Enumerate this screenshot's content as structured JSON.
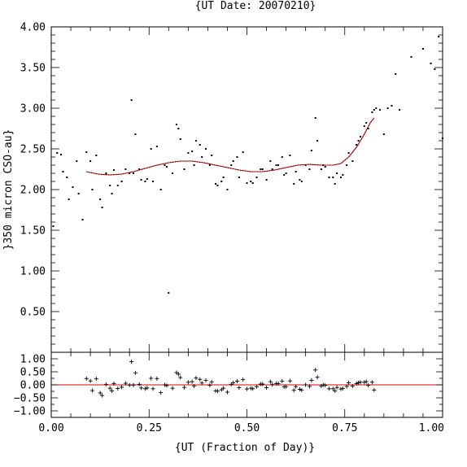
{
  "chart_data": [
    {
      "type": "scatter",
      "title": "{UT Date: 20070210}",
      "xlabel": "",
      "ylabel": "}350 micron CSO-au}",
      "xlim": [
        0,
        1
      ],
      "ylim": [
        0,
        4.0
      ],
      "yticks": [
        0.5,
        1.0,
        1.5,
        2.0,
        2.5,
        3.0,
        3.5,
        4.0
      ],
      "ytick_labels": [
        "0.50",
        "1.00",
        "1.50",
        "2.00",
        "2.50",
        "3.00",
        "3.50",
        "4.00"
      ],
      "colors": {
        "points": "#000000",
        "fit": "#e00000"
      },
      "grid": false,
      "series": [
        {
          "kind": "points",
          "points": [
            [
              0.005,
              1.55
            ],
            [
              0.015,
              2.45
            ],
            [
              0.025,
              2.43
            ],
            [
              0.03,
              2.22
            ],
            [
              0.04,
              2.15
            ],
            [
              0.045,
              1.88
            ],
            [
              0.055,
              2.03
            ],
            [
              0.065,
              2.35
            ],
            [
              0.07,
              1.95
            ],
            [
              0.08,
              1.63
            ],
            [
              0.09,
              2.46
            ],
            [
              0.1,
              2.35
            ],
            [
              0.105,
              2.0
            ],
            [
              0.115,
              2.42
            ],
            [
              0.125,
              1.88
            ],
            [
              0.13,
              1.78
            ],
            [
              0.14,
              2.2
            ],
            [
              0.15,
              2.05
            ],
            [
              0.155,
              1.95
            ],
            [
              0.16,
              2.24
            ],
            [
              0.17,
              2.05
            ],
            [
              0.18,
              2.1
            ],
            [
              0.19,
              2.25
            ],
            [
              0.2,
              2.2
            ],
            [
              0.205,
              3.1
            ],
            [
              0.21,
              2.2
            ],
            [
              0.215,
              2.68
            ],
            [
              0.225,
              2.25
            ],
            [
              0.23,
              2.12
            ],
            [
              0.24,
              2.1
            ],
            [
              0.245,
              2.13
            ],
            [
              0.255,
              2.5
            ],
            [
              0.26,
              2.1
            ],
            [
              0.27,
              2.53
            ],
            [
              0.28,
              2.0
            ],
            [
              0.29,
              2.3
            ],
            [
              0.295,
              2.28
            ],
            [
              0.3,
              0.73
            ],
            [
              0.31,
              2.2
            ],
            [
              0.32,
              2.8
            ],
            [
              0.325,
              2.75
            ],
            [
              0.33,
              2.62
            ],
            [
              0.34,
              2.25
            ],
            [
              0.35,
              2.45
            ],
            [
              0.36,
              2.47
            ],
            [
              0.365,
              2.3
            ],
            [
              0.37,
              2.6
            ],
            [
              0.38,
              2.55
            ],
            [
              0.385,
              2.4
            ],
            [
              0.395,
              2.5
            ],
            [
              0.405,
              2.3
            ],
            [
              0.41,
              2.42
            ],
            [
              0.42,
              2.07
            ],
            [
              0.425,
              2.05
            ],
            [
              0.435,
              2.1
            ],
            [
              0.44,
              2.15
            ],
            [
              0.45,
              2.0
            ],
            [
              0.46,
              2.3
            ],
            [
              0.465,
              2.35
            ],
            [
              0.475,
              2.4
            ],
            [
              0.48,
              2.15
            ],
            [
              0.49,
              2.46
            ],
            [
              0.5,
              2.08
            ],
            [
              0.51,
              2.1
            ],
            [
              0.515,
              2.08
            ],
            [
              0.525,
              2.15
            ],
            [
              0.535,
              2.25
            ],
            [
              0.54,
              2.25
            ],
            [
              0.55,
              2.12
            ],
            [
              0.56,
              2.35
            ],
            [
              0.565,
              2.25
            ],
            [
              0.575,
              2.3
            ],
            [
              0.58,
              2.3
            ],
            [
              0.59,
              2.4
            ],
            [
              0.595,
              2.18
            ],
            [
              0.6,
              2.2
            ],
            [
              0.61,
              2.42
            ],
            [
              0.62,
              2.07
            ],
            [
              0.625,
              2.22
            ],
            [
              0.635,
              2.12
            ],
            [
              0.64,
              2.1
            ],
            [
              0.65,
              2.3
            ],
            [
              0.66,
              2.25
            ],
            [
              0.665,
              2.48
            ],
            [
              0.675,
              2.88
            ],
            [
              0.68,
              2.6
            ],
            [
              0.69,
              2.25
            ],
            [
              0.695,
              2.3
            ],
            [
              0.7,
              2.28
            ],
            [
              0.71,
              2.15
            ],
            [
              0.72,
              2.15
            ],
            [
              0.725,
              2.07
            ],
            [
              0.73,
              2.2
            ],
            [
              0.74,
              2.15
            ],
            [
              0.745,
              2.18
            ],
            [
              0.755,
              2.3
            ],
            [
              0.76,
              2.45
            ],
            [
              0.77,
              2.35
            ],
            [
              0.78,
              2.55
            ],
            [
              0.785,
              2.6
            ],
            [
              0.79,
              2.65
            ],
            [
              0.8,
              2.78
            ],
            [
              0.805,
              2.82
            ],
            [
              0.81,
              2.75
            ],
            [
              0.82,
              2.95
            ],
            [
              0.825,
              2.98
            ],
            [
              0.83,
              3.0
            ],
            [
              0.84,
              2.98
            ],
            [
              0.85,
              2.68
            ],
            [
              0.86,
              3.0
            ],
            [
              0.87,
              3.03
            ],
            [
              0.88,
              3.42
            ],
            [
              0.89,
              2.98
            ],
            [
              0.92,
              3.63
            ],
            [
              0.95,
              3.73
            ],
            [
              0.97,
              3.55
            ],
            [
              0.98,
              3.48
            ],
            [
              0.99,
              3.88
            ],
            [
              1.0,
              2.63
            ]
          ]
        },
        {
          "kind": "fit",
          "points": [
            [
              0.09,
              2.22
            ],
            [
              0.12,
              2.19
            ],
            [
              0.15,
              2.18
            ],
            [
              0.18,
              2.19
            ],
            [
              0.21,
              2.22
            ],
            [
              0.24,
              2.26
            ],
            [
              0.27,
              2.3
            ],
            [
              0.3,
              2.33
            ],
            [
              0.33,
              2.35
            ],
            [
              0.36,
              2.35
            ],
            [
              0.39,
              2.33
            ],
            [
              0.42,
              2.3
            ],
            [
              0.45,
              2.27
            ],
            [
              0.48,
              2.24
            ],
            [
              0.51,
              2.22
            ],
            [
              0.54,
              2.22
            ],
            [
              0.57,
              2.24
            ],
            [
              0.6,
              2.27
            ],
            [
              0.63,
              2.3
            ],
            [
              0.66,
              2.31
            ],
            [
              0.69,
              2.3
            ],
            [
              0.72,
              2.3
            ],
            [
              0.74,
              2.32
            ],
            [
              0.76,
              2.4
            ],
            [
              0.78,
              2.52
            ],
            [
              0.8,
              2.68
            ],
            [
              0.815,
              2.82
            ],
            [
              0.825,
              2.88
            ]
          ]
        }
      ]
    },
    {
      "type": "scatter",
      "title": "",
      "xlabel": "{UT (Fraction of Day)}",
      "ylabel": "",
      "xlim": [
        0,
        1
      ],
      "ylim": [
        -1.25,
        1.25
      ],
      "xticks": [
        0,
        0.25,
        0.5,
        0.75,
        1.0
      ],
      "xtick_labels": [
        "0.00",
        "0.25",
        "0.50",
        "0.75",
        "1.00"
      ],
      "yticks": [
        -1.0,
        -0.5,
        0.0,
        0.5,
        1.0
      ],
      "ytick_labels": [
        "−1.00",
        "−0.50",
        "0.00",
        "0.50",
        "1.00"
      ],
      "colors": {
        "points": "#000000",
        "zero_line": "#e00000"
      },
      "grid": false,
      "series": [
        {
          "kind": "residuals",
          "points": [
            [
              0.09,
              0.24
            ],
            [
              0.1,
              0.15
            ],
            [
              0.105,
              -0.22
            ],
            [
              0.115,
              0.23
            ],
            [
              0.125,
              -0.31
            ],
            [
              0.13,
              -0.41
            ],
            [
              0.14,
              0.02
            ],
            [
              0.15,
              -0.13
            ],
            [
              0.155,
              -0.23
            ],
            [
              0.16,
              0.05
            ],
            [
              0.17,
              -0.14
            ],
            [
              0.18,
              -0.09
            ],
            [
              0.19,
              0.06
            ],
            [
              0.2,
              -0.01
            ],
            [
              0.205,
              0.89
            ],
            [
              0.21,
              -0.01
            ],
            [
              0.215,
              0.46
            ],
            [
              0.225,
              0.02
            ],
            [
              0.23,
              -0.12
            ],
            [
              0.24,
              -0.15
            ],
            [
              0.245,
              -0.12
            ],
            [
              0.255,
              0.25
            ],
            [
              0.26,
              -0.15
            ],
            [
              0.27,
              0.24
            ],
            [
              0.28,
              -0.3
            ],
            [
              0.29,
              0.0
            ],
            [
              0.295,
              -0.03
            ],
            [
              0.31,
              -0.13
            ],
            [
              0.32,
              0.47
            ],
            [
              0.325,
              0.41
            ],
            [
              0.33,
              0.28
            ],
            [
              0.34,
              -0.1
            ],
            [
              0.35,
              0.1
            ],
            [
              0.36,
              0.12
            ],
            [
              0.365,
              -0.05
            ],
            [
              0.37,
              0.26
            ],
            [
              0.38,
              0.21
            ],
            [
              0.385,
              0.07
            ],
            [
              0.395,
              0.17
            ],
            [
              0.405,
              -0.02
            ],
            [
              0.41,
              0.11
            ],
            [
              0.42,
              -0.23
            ],
            [
              0.425,
              -0.24
            ],
            [
              0.435,
              -0.19
            ],
            [
              0.44,
              -0.13
            ],
            [
              0.45,
              -0.28
            ],
            [
              0.46,
              0.02
            ],
            [
              0.465,
              0.08
            ],
            [
              0.475,
              0.14
            ],
            [
              0.48,
              -0.11
            ],
            [
              0.49,
              0.2
            ],
            [
              0.5,
              -0.16
            ],
            [
              0.51,
              -0.13
            ],
            [
              0.515,
              -0.15
            ],
            [
              0.525,
              -0.07
            ],
            [
              0.535,
              0.03
            ],
            [
              0.54,
              0.03
            ],
            [
              0.55,
              -0.11
            ],
            [
              0.56,
              0.12
            ],
            [
              0.565,
              0.01
            ],
            [
              0.575,
              0.05
            ],
            [
              0.58,
              0.05
            ],
            [
              0.59,
              0.14
            ],
            [
              0.595,
              -0.08
            ],
            [
              0.6,
              -0.07
            ],
            [
              0.61,
              0.15
            ],
            [
              0.62,
              -0.21
            ],
            [
              0.625,
              -0.07
            ],
            [
              0.635,
              -0.17
            ],
            [
              0.64,
              -0.2
            ],
            [
              0.65,
              0.0
            ],
            [
              0.66,
              -0.06
            ],
            [
              0.665,
              0.17
            ],
            [
              0.675,
              0.57
            ],
            [
              0.68,
              0.29
            ],
            [
              0.69,
              -0.05
            ],
            [
              0.695,
              0.0
            ],
            [
              0.7,
              -0.02
            ],
            [
              0.71,
              -0.15
            ],
            [
              0.72,
              -0.15
            ],
            [
              0.725,
              -0.23
            ],
            [
              0.73,
              -0.1
            ],
            [
              0.74,
              -0.16
            ],
            [
              0.745,
              -0.14
            ],
            [
              0.755,
              -0.06
            ],
            [
              0.76,
              0.08
            ],
            [
              0.77,
              -0.05
            ],
            [
              0.78,
              0.05
            ],
            [
              0.785,
              0.08
            ],
            [
              0.79,
              0.1
            ],
            [
              0.8,
              0.1
            ],
            [
              0.805,
              0.12
            ],
            [
              0.81,
              -0.02
            ],
            [
              0.82,
              0.1
            ],
            [
              0.825,
              -0.2
            ]
          ]
        }
      ]
    }
  ]
}
